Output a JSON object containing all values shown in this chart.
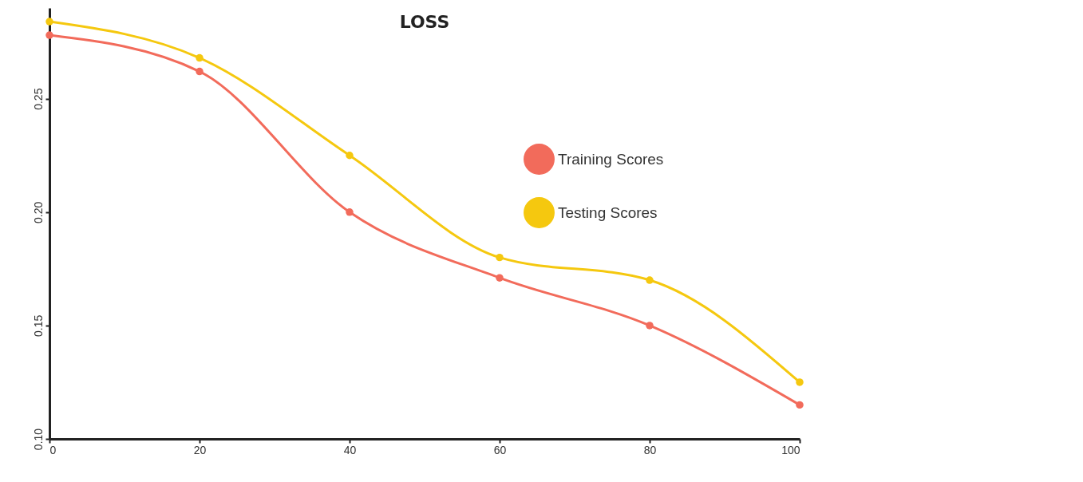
{
  "chart_data": {
    "type": "line",
    "title": "LOSS",
    "x": [
      0,
      20,
      40,
      60,
      80,
      100
    ],
    "series": [
      {
        "name": "Training Scores",
        "color": "#f26b5b",
        "values": [
          0.278,
          0.262,
          0.2,
          0.171,
          0.15,
          0.115
        ]
      },
      {
        "name": "Testing Scores",
        "color": "#f5c80f",
        "values": [
          0.284,
          0.268,
          0.225,
          0.18,
          0.17,
          0.125
        ]
      }
    ],
    "xlim": [
      0,
      100
    ],
    "xticks": [
      0,
      20,
      40,
      60,
      80,
      100
    ],
    "ylim": [
      0.1,
      0.29
    ],
    "yticks": [
      {
        "value": 0.1,
        "label": "0.10"
      },
      {
        "value": 0.15,
        "label": "0.15"
      },
      {
        "value": 0.2,
        "label": "0.20"
      },
      {
        "value": 0.25,
        "label": "0.25"
      }
    ],
    "grid": false,
    "legend": "top right",
    "marker": "circle",
    "line_style": "solid"
  }
}
